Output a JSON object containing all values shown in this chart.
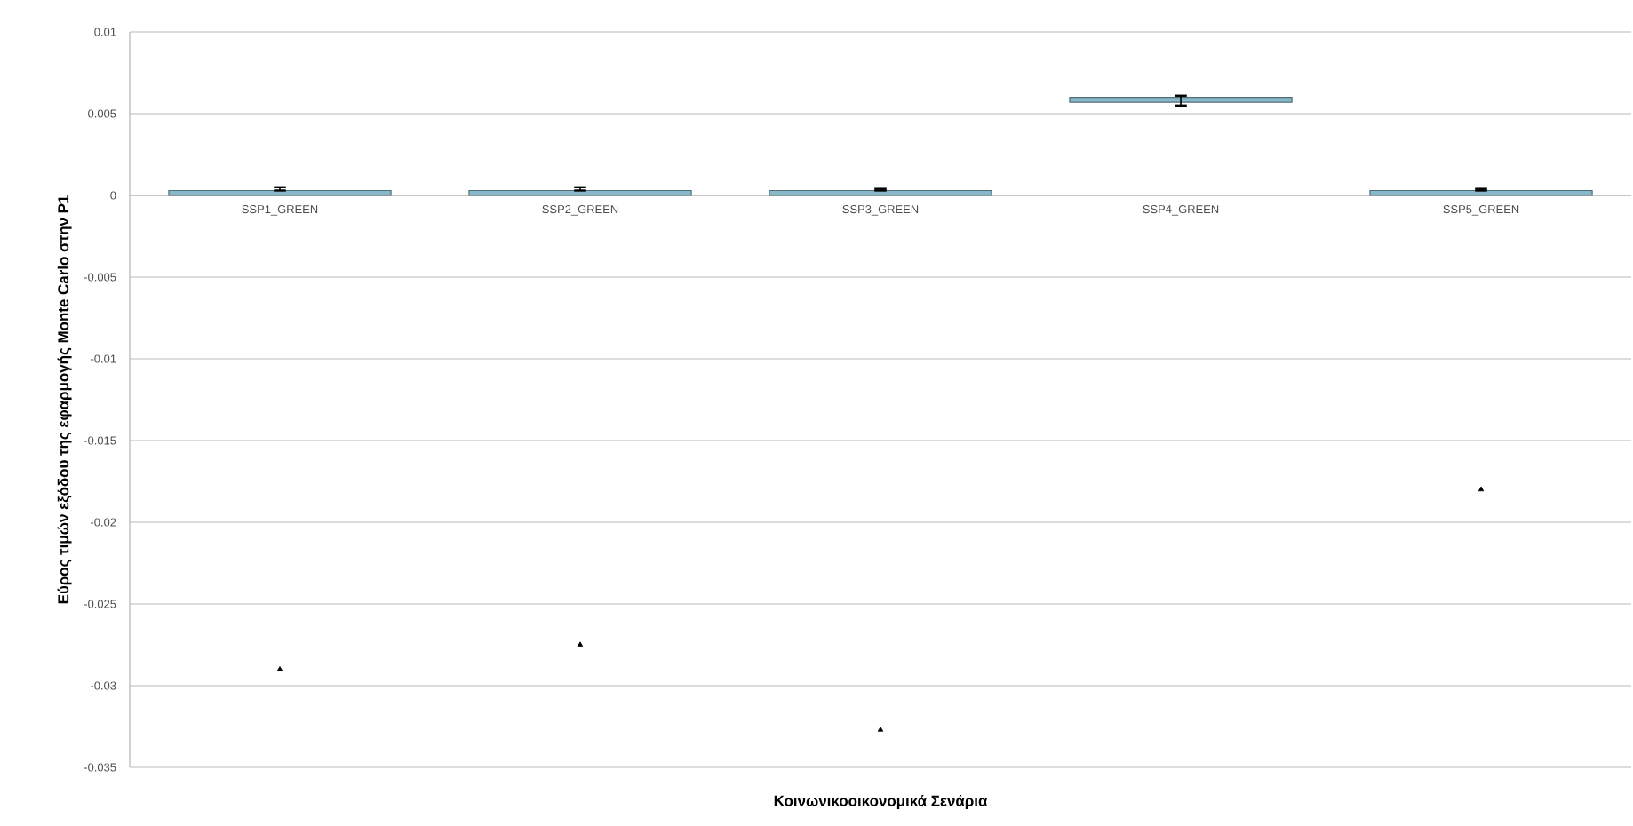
{
  "chart_data": {
    "type": "bar",
    "xlabel": "Κοινωνικοοικονομικά Σενάρια",
    "ylabel": "Εύρος τιμών εξόδου της εφαρμογής Monte Carlo στην P1",
    "categories": [
      "SSP1_GREEN",
      "SSP2_GREEN",
      "SSP3_GREEN",
      "SSP4_GREEN",
      "SSP5_GREEN"
    ],
    "series": [
      {
        "color": "#86b8c9",
        "base": [
          0,
          0,
          0,
          0.0057,
          0
        ],
        "values": [
          0.0003,
          0.0003,
          0.0003,
          0.0003,
          0.0003
        ],
        "errors": [
          [
            0.0003,
            0.0005
          ],
          [
            0.0003,
            0.0005
          ],
          [
            0.0003,
            0.0004
          ],
          [
            0.0055,
            0.0061
          ],
          [
            0.0003,
            0.0004
          ]
        ]
      },
      {
        "type": "scatter",
        "color": "#000000",
        "marker": "triangle",
        "x": [
          "SSP1_GREEN",
          "SSP2_GREEN",
          "SSP3_GREEN",
          "SSP4_GREEN",
          "SSP5_GREEN"
        ],
        "values": [
          -0.029,
          -0.0275,
          -0.0327,
          null,
          -0.018
        ]
      }
    ],
    "ylim": [
      -0.035,
      0.01
    ],
    "yticks": [
      -0.035,
      -0.03,
      -0.025,
      -0.02,
      -0.015,
      -0.01,
      -0.005,
      0,
      0.005,
      0.01
    ],
    "grid": "y"
  }
}
